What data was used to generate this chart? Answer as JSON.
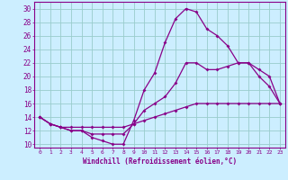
{
  "xlabel": "Windchill (Refroidissement éolien,°C)",
  "background_color": "#cceeff",
  "grid_color": "#99cccc",
  "line_color": "#880088",
  "xticks": [
    0,
    1,
    2,
    3,
    4,
    5,
    6,
    7,
    8,
    9,
    10,
    11,
    12,
    13,
    14,
    15,
    16,
    17,
    18,
    19,
    20,
    21,
    22,
    23
  ],
  "yticks": [
    10,
    12,
    14,
    16,
    18,
    20,
    22,
    24,
    26,
    28,
    30
  ],
  "line1_y": [
    14,
    13,
    12.5,
    12,
    12,
    11,
    10.5,
    10,
    10,
    13.5,
    18,
    20.5,
    25,
    28.5,
    30,
    29.5,
    27,
    26,
    24.5,
    22,
    22,
    20,
    18.5,
    16
  ],
  "line2_y": [
    14,
    13,
    12.5,
    12,
    12,
    11.5,
    11.5,
    11.5,
    11.5,
    13,
    15,
    16,
    17,
    19,
    22,
    22,
    21,
    21,
    21.5,
    22,
    22,
    21,
    20,
    16
  ],
  "line3_y": [
    14,
    13,
    12.5,
    12.5,
    12.5,
    12.5,
    12.5,
    12.5,
    12.5,
    13,
    13.5,
    14,
    14.5,
    15,
    15.5,
    16,
    16,
    16,
    16,
    16,
    16,
    16,
    16,
    16
  ]
}
